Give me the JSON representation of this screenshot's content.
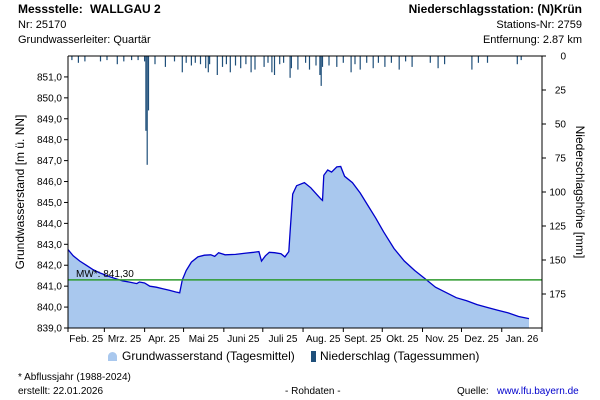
{
  "header": {
    "left": {
      "station_label": "Messstelle:",
      "station_name": "WALLGAU 2",
      "nr": "Nr: 25170",
      "aquifer": "Grundwasserleiter: Quartär"
    },
    "right": {
      "title": "Niederschlagsstation: (N)Krün",
      "station_nr": "Stations-Nr: 2759",
      "distance": "Entfernung: 2.87 km"
    }
  },
  "footer": {
    "footnote": "* Abflussjahr (1988-2024)",
    "created": "erstellt:  22.01.2026",
    "raw": "- Rohdaten -",
    "source_label": "Quelle:",
    "source_link": "www.lfu.bayern.de"
  },
  "colors": {
    "area_fill": "#a9c8ee",
    "area_line": "#0000cc",
    "mw_line": "#2e9a2e",
    "precip": "#1f4f7a",
    "axis": "#000000"
  },
  "chart_data": {
    "type": "area",
    "x_range": [
      "2025-02-01",
      "2026-02-01"
    ],
    "x_ticks": [
      "Feb. 25",
      "Mrz. 25",
      "Apr. 25",
      "Mai 25",
      "Juni 25",
      "Juli 25",
      "Aug. 25",
      "Sept. 25",
      "Okt. 25",
      "Nov. 25",
      "Dez. 25",
      "Jan. 26"
    ],
    "ylabel": "Grundwasserstand [m ü. NN]",
    "ylim": [
      839.0,
      852.0
    ],
    "y_ticks": [
      "839,0",
      "840,0",
      "841,0",
      "842,0",
      "843,0",
      "844,0",
      "845,0",
      "846,0",
      "847,0",
      "848,0",
      "849,0",
      "850,0",
      "851,0"
    ],
    "y2label": "Niederschlagshöhe [mm]",
    "y2_range": [
      0,
      200
    ],
    "y2_reversed": true,
    "y2_ticks": [
      "0",
      "25",
      "50",
      "75",
      "100",
      "125",
      "150",
      "175"
    ],
    "legend": {
      "placement": "bottom",
      "items": [
        {
          "name": "Grundwasserstand (Tagesmittel)",
          "kind": "area"
        },
        {
          "name": "Niederschlag (Tagessummen)",
          "kind": "bar"
        }
      ]
    },
    "mw": {
      "label": "MW*: 841,30",
      "value": 841.3
    },
    "series": [
      {
        "name": "Grundwasserstand (Tagesmittel)",
        "points": [
          [
            "2025-02-01",
            842.75
          ],
          [
            "2025-02-05",
            842.45
          ],
          [
            "2025-02-10",
            842.2
          ],
          [
            "2025-02-15",
            842.0
          ],
          [
            "2025-02-20",
            841.8
          ],
          [
            "2025-02-25",
            841.65
          ],
          [
            "2025-03-01",
            841.55
          ],
          [
            "2025-03-05",
            841.45
          ],
          [
            "2025-03-10",
            841.35
          ],
          [
            "2025-03-15",
            841.25
          ],
          [
            "2025-03-20",
            841.2
          ],
          [
            "2025-03-26",
            841.12
          ],
          [
            "2025-03-28",
            841.2
          ],
          [
            "2025-04-01",
            841.15
          ],
          [
            "2025-04-05",
            841.0
          ],
          [
            "2025-04-10",
            840.95
          ],
          [
            "2025-04-15",
            840.88
          ],
          [
            "2025-04-20",
            840.8
          ],
          [
            "2025-04-25",
            840.72
          ],
          [
            "2025-04-28",
            840.68
          ],
          [
            "2025-04-30",
            841.3
          ],
          [
            "2025-05-03",
            841.75
          ],
          [
            "2025-05-07",
            842.15
          ],
          [
            "2025-05-12",
            842.4
          ],
          [
            "2025-05-17",
            842.48
          ],
          [
            "2025-05-22",
            842.5
          ],
          [
            "2025-05-25",
            842.42
          ],
          [
            "2025-05-28",
            842.6
          ],
          [
            "2025-06-02",
            842.5
          ],
          [
            "2025-06-10",
            842.52
          ],
          [
            "2025-06-18",
            842.58
          ],
          [
            "2025-06-24",
            842.62
          ],
          [
            "2025-06-28",
            842.65
          ],
          [
            "2025-06-30",
            842.2
          ],
          [
            "2025-07-03",
            842.45
          ],
          [
            "2025-07-06",
            842.62
          ],
          [
            "2025-07-10",
            842.6
          ],
          [
            "2025-07-15",
            842.55
          ],
          [
            "2025-07-18",
            842.4
          ],
          [
            "2025-07-21",
            842.65
          ],
          [
            "2025-07-22",
            843.6
          ],
          [
            "2025-07-24",
            845.4
          ],
          [
            "2025-07-27",
            845.8
          ],
          [
            "2025-08-02",
            845.95
          ],
          [
            "2025-08-07",
            845.7
          ],
          [
            "2025-08-12",
            845.35
          ],
          [
            "2025-08-15",
            845.15
          ],
          [
            "2025-08-16",
            845.1
          ],
          [
            "2025-08-17",
            846.3
          ],
          [
            "2025-08-20",
            846.55
          ],
          [
            "2025-08-23",
            846.45
          ],
          [
            "2025-08-27",
            846.7
          ],
          [
            "2025-08-30",
            846.72
          ],
          [
            "2025-09-02",
            846.25
          ],
          [
            "2025-09-08",
            845.95
          ],
          [
            "2025-09-14",
            845.45
          ],
          [
            "2025-09-20",
            844.85
          ],
          [
            "2025-09-26",
            844.25
          ],
          [
            "2025-10-02",
            843.6
          ],
          [
            "2025-10-10",
            842.8
          ],
          [
            "2025-10-18",
            842.2
          ],
          [
            "2025-10-26",
            841.75
          ],
          [
            "2025-11-03",
            841.35
          ],
          [
            "2025-11-11",
            840.95
          ],
          [
            "2025-11-19",
            840.7
          ],
          [
            "2025-11-27",
            840.45
          ],
          [
            "2025-12-05",
            840.3
          ],
          [
            "2025-12-13",
            840.12
          ],
          [
            "2025-12-21",
            839.98
          ],
          [
            "2025-12-29",
            839.85
          ],
          [
            "2026-01-06",
            839.72
          ],
          [
            "2026-01-14",
            839.55
          ],
          [
            "2026-01-22",
            839.45
          ]
        ]
      },
      {
        "name": "Niederschlag (Tagessummen)",
        "points": [
          [
            "2025-02-04",
            3
          ],
          [
            "2025-02-09",
            5
          ],
          [
            "2025-02-14",
            4
          ],
          [
            "2025-02-26",
            4
          ],
          [
            "2025-03-03",
            3
          ],
          [
            "2025-03-11",
            6
          ],
          [
            "2025-03-16",
            4
          ],
          [
            "2025-03-22",
            3
          ],
          [
            "2025-03-27",
            3
          ],
          [
            "2025-04-01",
            4
          ],
          [
            "2025-04-02",
            55
          ],
          [
            "2025-04-03",
            80
          ],
          [
            "2025-04-04",
            40
          ],
          [
            "2025-04-09",
            6
          ],
          [
            "2025-04-17",
            8
          ],
          [
            "2025-04-24",
            4
          ],
          [
            "2025-04-30",
            12
          ],
          [
            "2025-05-03",
            5
          ],
          [
            "2025-05-07",
            7
          ],
          [
            "2025-05-10",
            5
          ],
          [
            "2025-05-14",
            6
          ],
          [
            "2025-05-18",
            9
          ],
          [
            "2025-05-20",
            12
          ],
          [
            "2025-05-21",
            6
          ],
          [
            "2025-05-27",
            14
          ],
          [
            "2025-05-31",
            8
          ],
          [
            "2025-06-03",
            6
          ],
          [
            "2025-06-06",
            12
          ],
          [
            "2025-06-10",
            7
          ],
          [
            "2025-06-14",
            9
          ],
          [
            "2025-06-18",
            6
          ],
          [
            "2025-06-22",
            12
          ],
          [
            "2025-06-25",
            10
          ],
          [
            "2025-07-02",
            8
          ],
          [
            "2025-07-05",
            5
          ],
          [
            "2025-07-08",
            12
          ],
          [
            "2025-07-10",
            14
          ],
          [
            "2025-07-14",
            6
          ],
          [
            "2025-07-17",
            5
          ],
          [
            "2025-07-22",
            16
          ],
          [
            "2025-07-23",
            9
          ],
          [
            "2025-07-28",
            10
          ],
          [
            "2025-08-03",
            5
          ],
          [
            "2025-08-06",
            10
          ],
          [
            "2025-08-11",
            7
          ],
          [
            "2025-08-14",
            14
          ],
          [
            "2025-08-15",
            22
          ],
          [
            "2025-08-16",
            8
          ],
          [
            "2025-08-21",
            7
          ],
          [
            "2025-08-27",
            8
          ],
          [
            "2025-09-01",
            5
          ],
          [
            "2025-09-07",
            12
          ],
          [
            "2025-09-10",
            6
          ],
          [
            "2025-09-14",
            10
          ],
          [
            "2025-09-19",
            5
          ],
          [
            "2025-09-24",
            9
          ],
          [
            "2025-09-28",
            5
          ],
          [
            "2025-10-03",
            8
          ],
          [
            "2025-10-08",
            5
          ],
          [
            "2025-10-14",
            10
          ],
          [
            "2025-10-19",
            4
          ],
          [
            "2025-10-24",
            8
          ],
          [
            "2025-11-07",
            5
          ],
          [
            "2025-11-13",
            9
          ],
          [
            "2025-11-18",
            6
          ],
          [
            "2025-12-09",
            10
          ],
          [
            "2025-12-14",
            5
          ],
          [
            "2025-12-21",
            5
          ],
          [
            "2026-01-13",
            6
          ],
          [
            "2026-01-16",
            3
          ]
        ]
      }
    ]
  }
}
